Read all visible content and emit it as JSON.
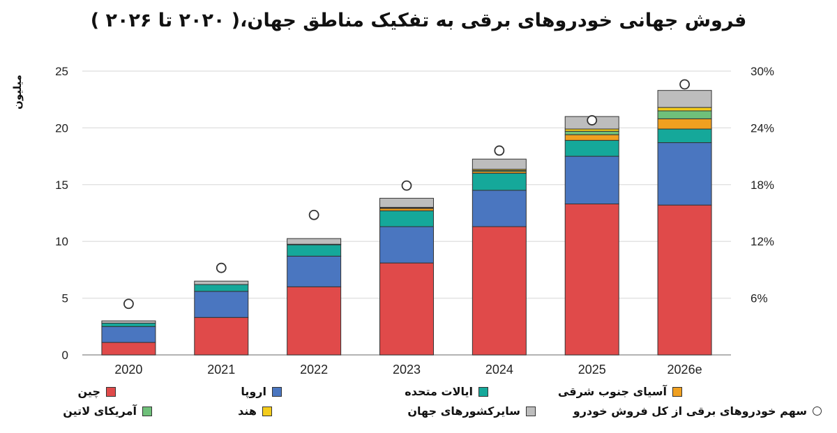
{
  "chart_data": {
    "type": "bar",
    "title": "فروش جهانی خودروهای برقی به تفکیک مناطق جهان،( ۲۰۲۰ تا ۲۰۲۶ )",
    "ylabel": "میلیون",
    "ylim": [
      0,
      25
    ],
    "y_ticks": [
      "0",
      "5",
      "10",
      "15",
      "20",
      "25"
    ],
    "y2lim": [
      0,
      30
    ],
    "y2_ticks": [
      "6%",
      "12%",
      "18%",
      "24%",
      "30%"
    ],
    "grid": true,
    "stacked": true,
    "categories": [
      "2020",
      "2021",
      "2022",
      "2023",
      "2024",
      "2025",
      "2026e"
    ],
    "series": [
      {
        "name": "چین",
        "color": "#e04a4a",
        "values": [
          1.1,
          3.3,
          6.0,
          8.1,
          11.3,
          13.3,
          13.2
        ]
      },
      {
        "name": "اروپا",
        "color": "#4a76c0",
        "values": [
          1.4,
          2.3,
          2.7,
          3.2,
          3.2,
          4.2,
          5.5
        ]
      },
      {
        "name": "ایالات متحده",
        "color": "#15a89a",
        "values": [
          0.3,
          0.6,
          1.0,
          1.4,
          1.5,
          1.4,
          1.2
        ]
      },
      {
        "name": "آسیای جنوب شرقی",
        "color": "#f0a020",
        "values": [
          0.0,
          0.0,
          0.05,
          0.2,
          0.15,
          0.5,
          0.9
        ]
      },
      {
        "name": "آمریکای لاتین",
        "color": "#6fc07a",
        "values": [
          0.0,
          0.0,
          0.0,
          0.05,
          0.1,
          0.3,
          0.7
        ]
      },
      {
        "name": "هند",
        "color": "#f4cc1c",
        "values": [
          0.0,
          0.0,
          0.0,
          0.05,
          0.1,
          0.2,
          0.3
        ]
      },
      {
        "name": "سایرکشورهای جهان",
        "color": "#bdbdbd",
        "values": [
          0.2,
          0.3,
          0.5,
          0.8,
          0.9,
          1.1,
          1.5
        ]
      }
    ],
    "share_series": {
      "name": "سهم خودروهای برقی از کل فروش خودرو",
      "values": [
        5.4,
        9.2,
        14.8,
        17.9,
        21.6,
        24.8,
        28.6
      ]
    },
    "legend_position": "bottom"
  }
}
